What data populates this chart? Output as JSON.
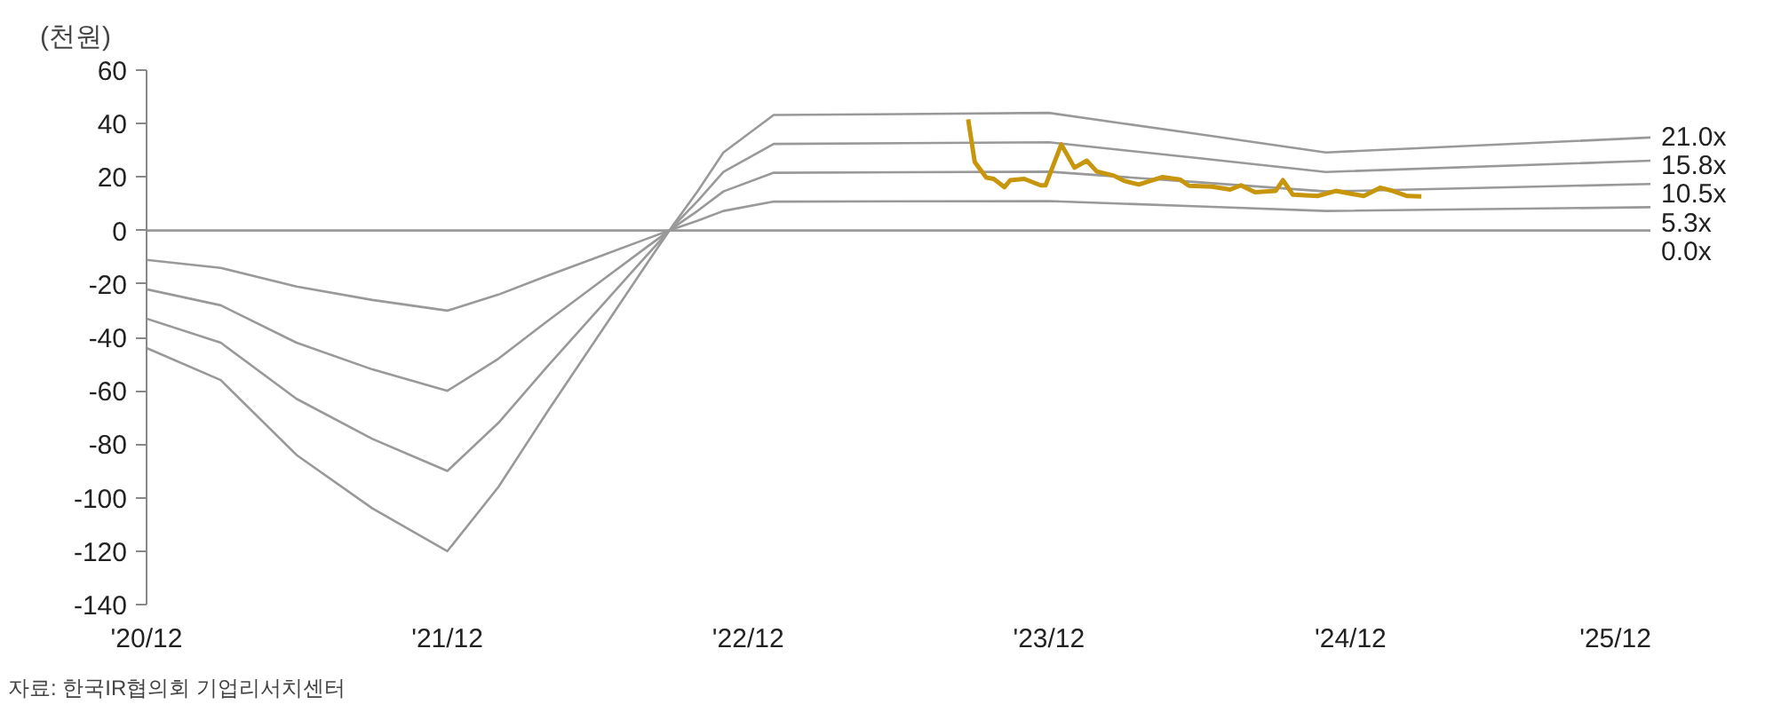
{
  "chart_data": {
    "type": "line",
    "ylabel": "(천원)",
    "annotations": [
      "자료: 한국IR협의회 기업리서치센터"
    ],
    "xlim": [
      "2020-12",
      "2025-12"
    ],
    "xticks": [
      {
        "value": "2020-12",
        "label": "'20/12"
      },
      {
        "value": "2021-12",
        "label": "'21/12"
      },
      {
        "value": "2022-12",
        "label": "'22/12"
      },
      {
        "value": "2023-12",
        "label": "'23/12"
      },
      {
        "value": "2024-12",
        "label": "'24/12"
      },
      {
        "value": "2025-12",
        "label": "'25/12"
      }
    ],
    "ylim": [
      -140,
      60
    ],
    "yticks": [
      -140,
      -120,
      -100,
      -80,
      -60,
      -40,
      -20,
      0,
      20,
      40,
      60
    ],
    "grid": false,
    "marker": "none",
    "line_style": "solid",
    "series": [
      {
        "name": "21.0x",
        "color": "#999999",
        "x": [
          "2020-12",
          "2021-03",
          "2021-06",
          "2021-09",
          "2021-12",
          "2022-02",
          "2022-04",
          "2022-06",
          "2022-08",
          "2022-09",
          "2022-10",
          "2022-11",
          "2023-01",
          "2023-12",
          "2024-03",
          "2024-06",
          "2024-11",
          "2025-12"
        ],
        "values": [
          -44,
          -56,
          -84,
          -104,
          -120,
          -96,
          -68,
          -40,
          -12,
          2,
          14.8,
          29.2,
          43.2,
          44,
          40,
          36,
          29.2,
          34.8
        ]
      },
      {
        "name": "15.8x",
        "color": "#999999",
        "x": [
          "2020-12",
          "2021-03",
          "2021-06",
          "2021-09",
          "2021-12",
          "2022-02",
          "2022-04",
          "2022-06",
          "2022-08",
          "2022-09",
          "2022-10",
          "2022-11",
          "2023-01",
          "2023-12",
          "2024-03",
          "2024-06",
          "2024-11",
          "2025-12"
        ],
        "values": [
          -33,
          -42,
          -63,
          -78,
          -90,
          -72,
          -51,
          -30,
          -9,
          1.5,
          11.1,
          21.9,
          32.4,
          33,
          30,
          27,
          21.9,
          26.1
        ]
      },
      {
        "name": "10.5x",
        "color": "#999999",
        "x": [
          "2020-12",
          "2021-03",
          "2021-06",
          "2021-09",
          "2021-12",
          "2022-02",
          "2022-04",
          "2022-06",
          "2022-08",
          "2022-09",
          "2022-10",
          "2022-11",
          "2023-01",
          "2023-12",
          "2024-03",
          "2024-06",
          "2024-11",
          "2025-12"
        ],
        "values": [
          -22,
          -28,
          -42,
          -52,
          -60,
          -48,
          -34,
          -20,
          -6,
          1,
          7.4,
          14.6,
          21.6,
          22,
          20,
          18,
          14.6,
          17.4
        ]
      },
      {
        "name": "5.3x",
        "color": "#999999",
        "x": [
          "2020-12",
          "2021-03",
          "2021-06",
          "2021-09",
          "2021-12",
          "2022-02",
          "2022-04",
          "2022-06",
          "2022-08",
          "2022-09",
          "2022-10",
          "2022-11",
          "2023-01",
          "2023-12",
          "2024-03",
          "2024-06",
          "2024-11",
          "2025-12"
        ],
        "values": [
          -11,
          -14,
          -21,
          -26,
          -30,
          -24,
          -17,
          -10,
          -3,
          0.5,
          3.7,
          7.3,
          10.8,
          11,
          10,
          9,
          7.3,
          8.7
        ]
      },
      {
        "name": "0.0x",
        "color": "#999999",
        "x": [
          "2020-12",
          "2025-12"
        ],
        "values": [
          0,
          0
        ]
      },
      {
        "color": "#c8960c",
        "x": [
          "2023-08-25",
          "2023-09-02",
          "2023-09-16",
          "2023-09-25",
          "2023-10-08",
          "2023-10-15",
          "2023-11-01",
          "2023-11-21",
          "2023-11-27",
          "2023-12-16",
          "2024-01-01",
          "2024-01-16",
          "2024-01-28",
          "2024-02-18",
          "2024-03-01",
          "2024-03-19",
          "2024-04-17",
          "2024-05-08",
          "2024-05-19",
          "2024-06-16",
          "2024-07-08",
          "2024-07-21",
          "2024-08-07",
          "2024-09-01",
          "2024-09-10",
          "2024-09-22",
          "2024-10-22",
          "2024-11-13",
          "2024-12-17",
          "2025-01-06",
          "2025-01-19",
          "2025-02-08",
          "2025-02-25"
        ],
        "values": [
          41.6,
          25.6,
          19.8,
          19.3,
          16.2,
          18.8,
          19.3,
          16.9,
          16.9,
          32.2,
          23.5,
          26.1,
          22.1,
          20.5,
          18.6,
          17.2,
          20.0,
          19.1,
          16.7,
          16.4,
          15.3,
          16.9,
          14.3,
          14.8,
          18.8,
          13.4,
          12.9,
          14.8,
          12.9,
          16.0,
          15.0,
          12.9,
          12.7
        ]
      }
    ]
  }
}
